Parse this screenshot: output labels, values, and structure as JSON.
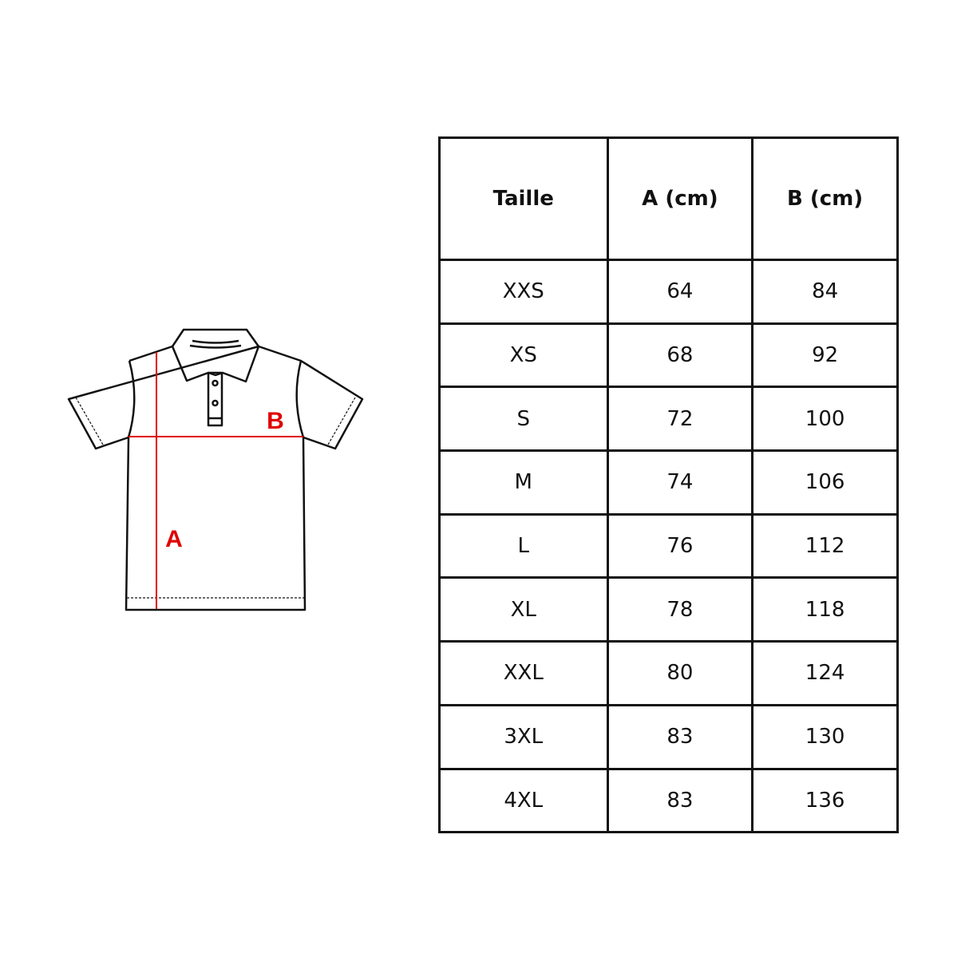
{
  "diagram": {
    "label_a": "A",
    "label_b": "B",
    "measure_color": "#e00000",
    "outline_color": "#111111"
  },
  "table": {
    "headers": [
      "Taille",
      "A (cm)",
      "B (cm)"
    ],
    "rows": [
      [
        "XXS",
        "64",
        "84"
      ],
      [
        "XS",
        "68",
        "92"
      ],
      [
        "S",
        "72",
        "100"
      ],
      [
        "M",
        "74",
        "106"
      ],
      [
        "L",
        "76",
        "112"
      ],
      [
        "XL",
        "78",
        "118"
      ],
      [
        "XXL",
        "80",
        "124"
      ],
      [
        "3XL",
        "83",
        "130"
      ],
      [
        "4XL",
        "83",
        "136"
      ]
    ]
  }
}
